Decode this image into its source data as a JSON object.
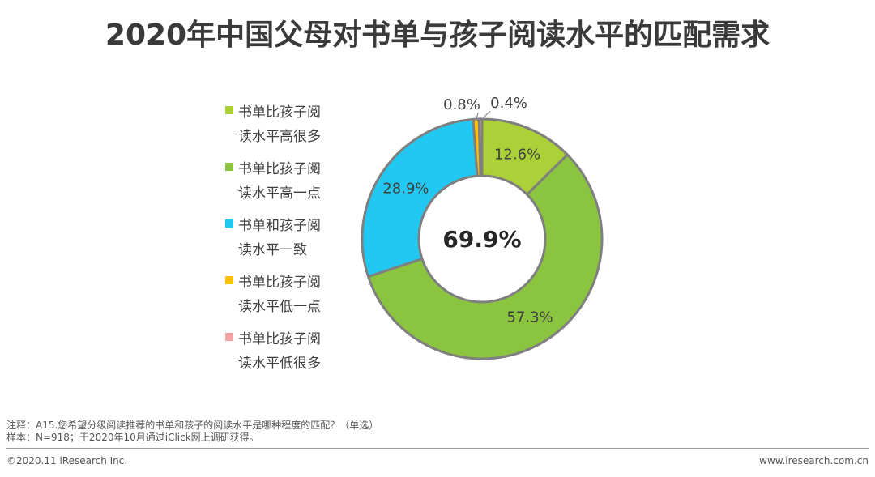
{
  "title": "2020年中国父母对书单与孩子阅读水平的匹配需求",
  "chart_data": {
    "type": "pie",
    "style": "donut",
    "center_label": "69.9%",
    "categories": [
      "书单比孩子阅读水平高很多",
      "书单比孩子阅读水平高一点",
      "书单和孩子阅读水平一致",
      "书单比孩子阅读水平低一点",
      "书单比孩子阅读水平低很多"
    ],
    "values": [
      12.6,
      57.3,
      28.9,
      0.8,
      0.4
    ],
    "value_labels": [
      "12.6%",
      "57.3%",
      "28.9%",
      "0.8%",
      "0.4%"
    ],
    "colors": [
      "#acd138",
      "#8bc43f",
      "#21c9f2",
      "#ffc000",
      "#f2a2a2"
    ],
    "legend_position": "left"
  },
  "legend": [
    {
      "line1": "书单比孩子阅",
      "line2": "读水平高很多",
      "color": "#acd138"
    },
    {
      "line1": "书单比孩子阅",
      "line2": "读水平高一点",
      "color": "#8bc43f"
    },
    {
      "line1": "书单和孩子阅",
      "line2": "读水平一致",
      "color": "#21c9f2"
    },
    {
      "line1": "书单比孩子阅",
      "line2": "读水平低一点",
      "color": "#ffc000"
    },
    {
      "line1": "书单比孩子阅",
      "line2": "读水平低很多",
      "color": "#f2a2a2"
    }
  ],
  "notes": {
    "note": "注释：A15.您希望分级阅读推荐的书单和孩子的阅读水平是哪种程度的匹配？（单选）",
    "sample": "样本：N=918；于2020年10月通过iClick网上调研获得。"
  },
  "footer": {
    "copyright": "©2020.11 iResearch Inc.",
    "website": "www.iresearch.com.cn"
  }
}
